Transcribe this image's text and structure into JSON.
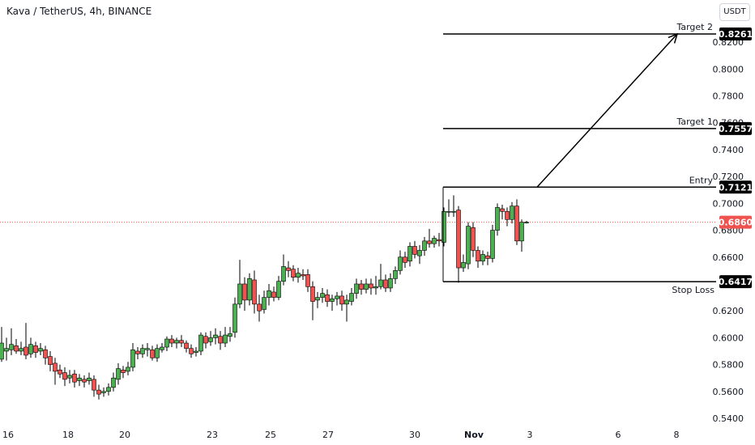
{
  "header": {
    "title": "Kava / TetherUS, 4h, BINANCE",
    "currency_button": "USDT"
  },
  "colors": {
    "up": "#26a69a",
    "up_fill": "#4caf50",
    "down": "#ef5350",
    "line": "#000000",
    "price_line": "#ef5350"
  },
  "chart_data": {
    "type": "candlestick",
    "title": "Kava / TetherUS, 4h, BINANCE",
    "y_axis": {
      "ticks": [
        0.54,
        0.56,
        0.58,
        0.6,
        0.62,
        0.66,
        0.68,
        0.7,
        0.72,
        0.74,
        0.76,
        0.78,
        0.8,
        0.82
      ],
      "range": [
        0.532,
        0.836
      ],
      "position": "right"
    },
    "x_axis": {
      "ticks": [
        "16",
        "18",
        "20",
        "23",
        "25",
        "27",
        "30",
        "Nov",
        "3",
        "6",
        "8"
      ],
      "range": [
        0,
        900
      ],
      "tick_positions": [
        10,
        84,
        154,
        262,
        334,
        405,
        512,
        585,
        654,
        763,
        835
      ]
    },
    "current_price": {
      "value": 0.686,
      "label": "0.6860"
    },
    "levels": [
      {
        "name": "Target 2",
        "value": 0.8261,
        "label": "0.8261",
        "x_start": 547
      },
      {
        "name": "Target 1",
        "value": 0.7557,
        "label": "0.7557",
        "x_start": 547
      },
      {
        "name": "Entry",
        "value": 0.7121,
        "label": "0.7121",
        "x_start": 547
      },
      {
        "name": "Stop Loss",
        "value": 0.6417,
        "label": "0.6417",
        "x_start": 547
      }
    ],
    "arrow": {
      "from": [
        663,
        0.7121
      ],
      "to": [
        836,
        0.8261
      ]
    },
    "entry_vertical": {
      "x": 547,
      "from": 0.6417,
      "to": 0.7121
    },
    "candles": [
      [
        2,
        0.584,
        0.596,
        0.608,
        0.582
      ],
      [
        8,
        0.59,
        0.592,
        0.6,
        0.583
      ],
      [
        14,
        0.591,
        0.595,
        0.607,
        0.587
      ],
      [
        20,
        0.594,
        0.59,
        0.599,
        0.588
      ],
      [
        26,
        0.59,
        0.592,
        0.597,
        0.587
      ],
      [
        32,
        0.593,
        0.587,
        0.611,
        0.584
      ],
      [
        38,
        0.588,
        0.595,
        0.6,
        0.585
      ],
      [
        44,
        0.594,
        0.589,
        0.597,
        0.585
      ],
      [
        50,
        0.59,
        0.592,
        0.596,
        0.587
      ],
      [
        56,
        0.591,
        0.585,
        0.594,
        0.58
      ],
      [
        62,
        0.586,
        0.58,
        0.59,
        0.575
      ],
      [
        68,
        0.581,
        0.575,
        0.585,
        0.565
      ],
      [
        74,
        0.576,
        0.573,
        0.58,
        0.57
      ],
      [
        80,
        0.574,
        0.569,
        0.578,
        0.564
      ],
      [
        86,
        0.57,
        0.572,
        0.576,
        0.566
      ],
      [
        92,
        0.573,
        0.567,
        0.576,
        0.563
      ],
      [
        98,
        0.568,
        0.57,
        0.573,
        0.564
      ],
      [
        104,
        0.569,
        0.567,
        0.572,
        0.563
      ],
      [
        110,
        0.568,
        0.57,
        0.574,
        0.565
      ],
      [
        116,
        0.569,
        0.561,
        0.572,
        0.556
      ],
      [
        122,
        0.561,
        0.558,
        0.565,
        0.554
      ],
      [
        128,
        0.559,
        0.56,
        0.563,
        0.556
      ],
      [
        134,
        0.56,
        0.563,
        0.566,
        0.557
      ],
      [
        140,
        0.563,
        0.57,
        0.574,
        0.56
      ],
      [
        146,
        0.569,
        0.577,
        0.581,
        0.565
      ],
      [
        152,
        0.576,
        0.574,
        0.579,
        0.57
      ],
      [
        158,
        0.575,
        0.578,
        0.582,
        0.572
      ],
      [
        164,
        0.578,
        0.591,
        0.596,
        0.575
      ],
      [
        170,
        0.59,
        0.588,
        0.593,
        0.584
      ],
      [
        176,
        0.588,
        0.592,
        0.595,
        0.585
      ],
      [
        182,
        0.591,
        0.592,
        0.596,
        0.586
      ],
      [
        188,
        0.591,
        0.585,
        0.594,
        0.583
      ],
      [
        194,
        0.585,
        0.592,
        0.595,
        0.582
      ],
      [
        200,
        0.591,
        0.593,
        0.596,
        0.589
      ],
      [
        206,
        0.593,
        0.599,
        0.601,
        0.59
      ],
      [
        212,
        0.599,
        0.596,
        0.602,
        0.593
      ],
      [
        218,
        0.596,
        0.598,
        0.6,
        0.592
      ],
      [
        224,
        0.598,
        0.596,
        0.602,
        0.593
      ],
      [
        230,
        0.596,
        0.592,
        0.598,
        0.589
      ],
      [
        236,
        0.592,
        0.588,
        0.595,
        0.585
      ],
      [
        242,
        0.589,
        0.59,
        0.593,
        0.586
      ],
      [
        248,
        0.59,
        0.602,
        0.604,
        0.587
      ],
      [
        254,
        0.601,
        0.596,
        0.604,
        0.592
      ],
      [
        260,
        0.597,
        0.6,
        0.605,
        0.594
      ],
      [
        266,
        0.6,
        0.602,
        0.607,
        0.595
      ],
      [
        272,
        0.601,
        0.596,
        0.605,
        0.591
      ],
      [
        278,
        0.596,
        0.602,
        0.608,
        0.593
      ],
      [
        284,
        0.601,
        0.603,
        0.608,
        0.597
      ],
      [
        290,
        0.604,
        0.625,
        0.63,
        0.6
      ],
      [
        296,
        0.625,
        0.64,
        0.658,
        0.622
      ],
      [
        302,
        0.64,
        0.628,
        0.645,
        0.62
      ],
      [
        308,
        0.628,
        0.644,
        0.648,
        0.624
      ],
      [
        314,
        0.643,
        0.625,
        0.65,
        0.618
      ],
      [
        320,
        0.625,
        0.62,
        0.632,
        0.612
      ],
      [
        326,
        0.621,
        0.63,
        0.635,
        0.618
      ],
      [
        332,
        0.63,
        0.635,
        0.64,
        0.624
      ],
      [
        338,
        0.634,
        0.63,
        0.638,
        0.627
      ],
      [
        344,
        0.63,
        0.642,
        0.646,
        0.628
      ],
      [
        350,
        0.642,
        0.653,
        0.662,
        0.639
      ],
      [
        356,
        0.652,
        0.65,
        0.657,
        0.645
      ],
      [
        362,
        0.651,
        0.645,
        0.654,
        0.642
      ],
      [
        368,
        0.645,
        0.648,
        0.652,
        0.641
      ],
      [
        374,
        0.647,
        0.646,
        0.651,
        0.643
      ],
      [
        380,
        0.647,
        0.638,
        0.651,
        0.634
      ],
      [
        386,
        0.638,
        0.627,
        0.642,
        0.613
      ],
      [
        392,
        0.628,
        0.63,
        0.634,
        0.622
      ],
      [
        398,
        0.63,
        0.633,
        0.637,
        0.626
      ],
      [
        404,
        0.632,
        0.627,
        0.636,
        0.623
      ],
      [
        410,
        0.627,
        0.629,
        0.632,
        0.62
      ],
      [
        416,
        0.629,
        0.631,
        0.634,
        0.624
      ],
      [
        422,
        0.631,
        0.625,
        0.635,
        0.62
      ],
      [
        428,
        0.625,
        0.628,
        0.632,
        0.612
      ],
      [
        434,
        0.627,
        0.633,
        0.637,
        0.624
      ],
      [
        440,
        0.633,
        0.64,
        0.644,
        0.629
      ],
      [
        446,
        0.64,
        0.636,
        0.643,
        0.632
      ],
      [
        452,
        0.636,
        0.64,
        0.644,
        0.633
      ],
      [
        458,
        0.64,
        0.637,
        0.644,
        0.632
      ],
      [
        464,
        0.637,
        0.638,
        0.646,
        0.632
      ],
      [
        470,
        0.638,
        0.643,
        0.655,
        0.636
      ],
      [
        476,
        0.643,
        0.637,
        0.647,
        0.634
      ],
      [
        482,
        0.637,
        0.644,
        0.648,
        0.634
      ],
      [
        488,
        0.644,
        0.65,
        0.653,
        0.64
      ],
      [
        494,
        0.65,
        0.66,
        0.665,
        0.647
      ],
      [
        500,
        0.66,
        0.656,
        0.664,
        0.652
      ],
      [
        506,
        0.657,
        0.668,
        0.671,
        0.653
      ],
      [
        512,
        0.668,
        0.662,
        0.672,
        0.659
      ],
      [
        518,
        0.661,
        0.665,
        0.669,
        0.655
      ],
      [
        524,
        0.665,
        0.672,
        0.675,
        0.661
      ],
      [
        530,
        0.672,
        0.67,
        0.681,
        0.667
      ],
      [
        536,
        0.67,
        0.674,
        0.676,
        0.667
      ],
      [
        542,
        0.673,
        0.672,
        0.678,
        0.668
      ],
      [
        548,
        0.671,
        0.694,
        0.697,
        0.668
      ],
      [
        554,
        0.694,
        0.694,
        0.703,
        0.69
      ],
      [
        560,
        0.694,
        0.694,
        0.706,
        0.69
      ],
      [
        566,
        0.695,
        0.652,
        0.698,
        0.641
      ],
      [
        572,
        0.652,
        0.656,
        0.662,
        0.649
      ],
      [
        578,
        0.655,
        0.683,
        0.686,
        0.651
      ],
      [
        584,
        0.682,
        0.665,
        0.686,
        0.66
      ],
      [
        590,
        0.665,
        0.657,
        0.668,
        0.652
      ],
      [
        596,
        0.657,
        0.662,
        0.665,
        0.654
      ],
      [
        602,
        0.661,
        0.659,
        0.664,
        0.654
      ],
      [
        608,
        0.659,
        0.68,
        0.684,
        0.656
      ],
      [
        614,
        0.68,
        0.697,
        0.7,
        0.676
      ],
      [
        620,
        0.696,
        0.694,
        0.699,
        0.688
      ],
      [
        626,
        0.694,
        0.688,
        0.697,
        0.683
      ],
      [
        632,
        0.688,
        0.698,
        0.701,
        0.685
      ],
      [
        638,
        0.698,
        0.672,
        0.703,
        0.669
      ],
      [
        644,
        0.672,
        0.686,
        0.688,
        0.664
      ],
      [
        650,
        0.686,
        0.686,
        0.687,
        0.685
      ]
    ]
  }
}
